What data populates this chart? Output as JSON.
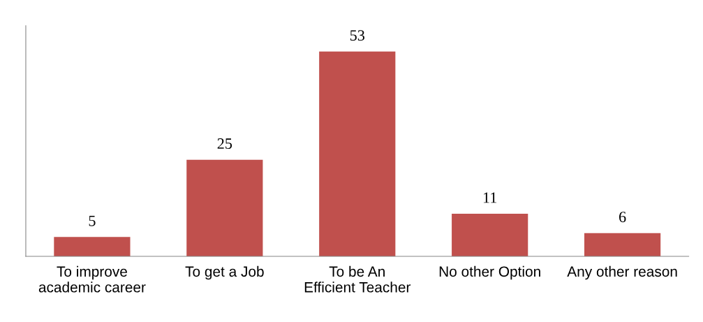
{
  "chart_data": {
    "type": "bar",
    "categories": [
      "To improve\nacademic career",
      "To get a Job",
      "To be An\nEfficient Teacher",
      "No other Option",
      "Any other reason"
    ],
    "values": [
      5,
      25,
      53,
      11,
      6
    ],
    "color": "#c0504d",
    "data_labels": true,
    "grid": false,
    "legend": false
  }
}
